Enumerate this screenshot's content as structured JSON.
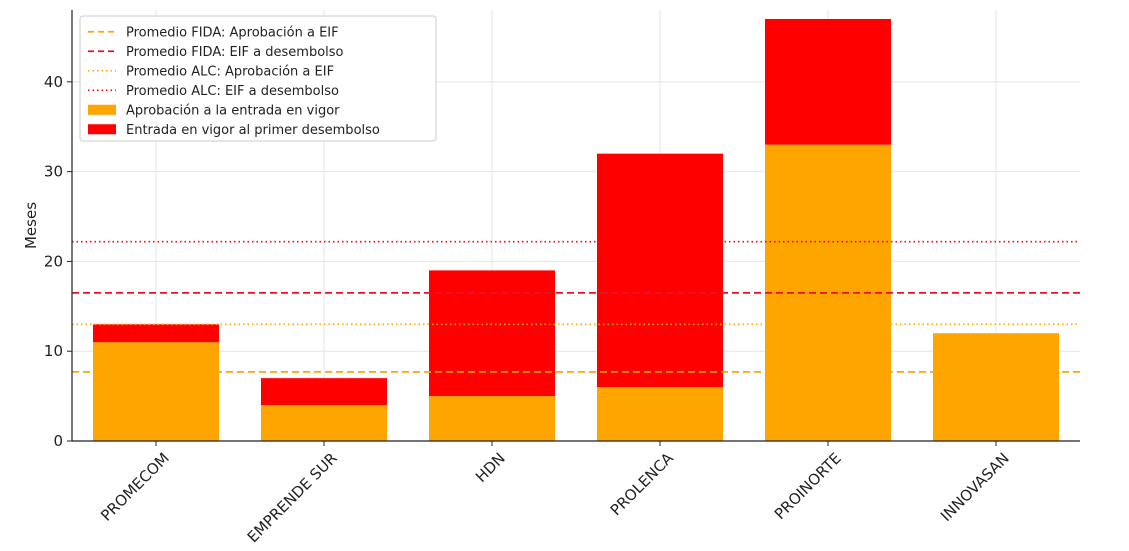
{
  "chart_data": {
    "type": "bar",
    "stacked": true,
    "categories": [
      "PROMECOM",
      "EMPRENDE SUR",
      "HDN",
      "PROLENCA",
      "PROINORTE",
      "INNOVASAN"
    ],
    "series": [
      {
        "name": "Aprobación a la entrada en vigor",
        "color": "#FFA500",
        "values": [
          11,
          4,
          5,
          6,
          33,
          12
        ]
      },
      {
        "name": "Entrada en vigor al primer desembolso",
        "color": "#FF0000",
        "values": [
          2,
          3,
          14,
          26,
          14,
          0
        ]
      }
    ],
    "reference_lines": [
      {
        "name": "Promedio FIDA: Aprobación a EIF",
        "value": 7.7,
        "color": "#FFA500",
        "style": "dashed"
      },
      {
        "name": "Promedio FIDA: EIF a desembolso",
        "value": 16.5,
        "color": "#E8102A",
        "style": "dashed"
      },
      {
        "name": "Promedio ALC: Aprobación a EIF",
        "value": 13.0,
        "color": "#FFA500",
        "style": "dotted"
      },
      {
        "name": "Promedio ALC: EIF a desembolso",
        "value": 22.2,
        "color": "#FF0000",
        "style": "dotted"
      }
    ],
    "ylabel": "Meses",
    "xlabel": "",
    "ylim": [
      0,
      48
    ],
    "yticks": [
      0,
      10,
      20,
      30,
      40
    ],
    "grid": true,
    "legend_position": "top-left"
  }
}
